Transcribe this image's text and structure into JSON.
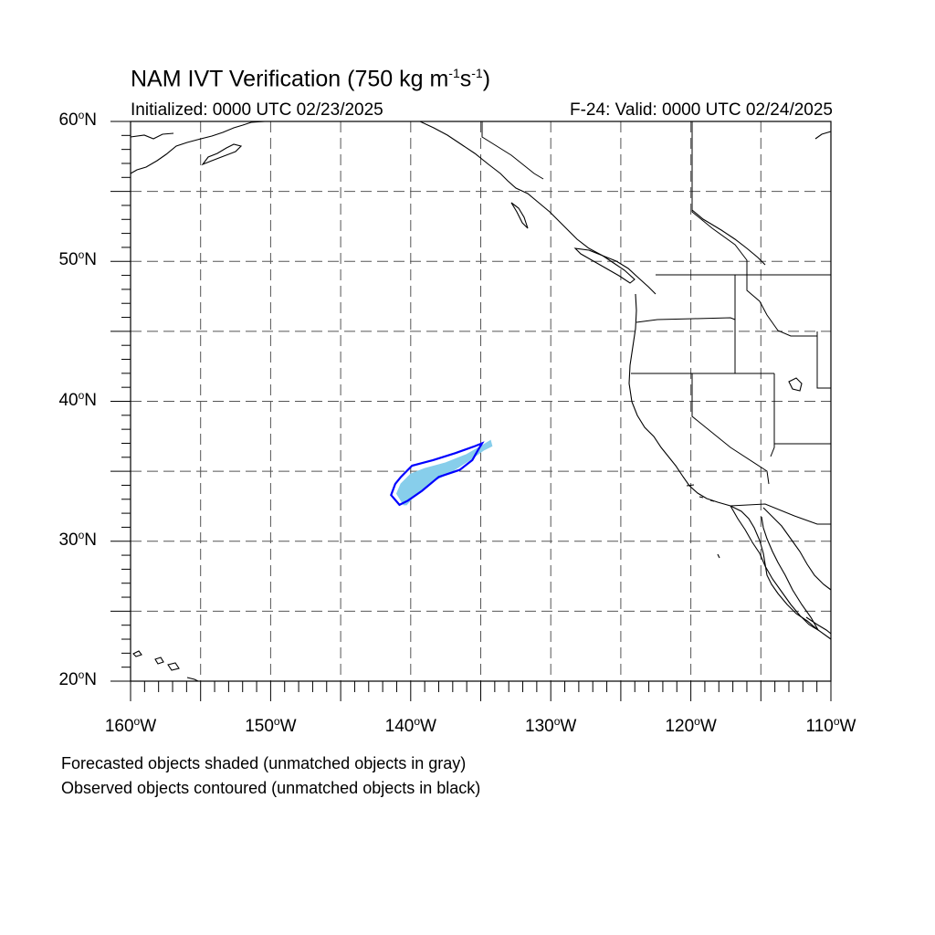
{
  "header": {
    "title_main": "NAM IVT Verification (750 kg m",
    "title_exp1": "-1",
    "title_mid": "s",
    "title_exp2": "-1",
    "title_end": ")",
    "initialized": "Initialized: 0000 UTC 02/23/2025",
    "valid": "F-24: Valid: 0000 UTC 02/24/2025"
  },
  "map": {
    "projection": "cylindrical-equidistant",
    "lon_range": [
      -160,
      -110
    ],
    "lat_range": [
      20,
      60
    ],
    "grid": "dashed every 5 degrees",
    "lat_labels": [
      {
        "value": 60,
        "deg": "60",
        "hem": "N"
      },
      {
        "value": 50,
        "deg": "50",
        "hem": "N"
      },
      {
        "value": 40,
        "deg": "40",
        "hem": "N"
      },
      {
        "value": 30,
        "deg": "30",
        "hem": "N"
      },
      {
        "value": 20,
        "deg": "20",
        "hem": "N"
      }
    ],
    "lon_labels": [
      {
        "value": -160,
        "deg": "160",
        "hem": "W"
      },
      {
        "value": -150,
        "deg": "150",
        "hem": "W"
      },
      {
        "value": -140,
        "deg": "140",
        "hem": "W"
      },
      {
        "value": -130,
        "deg": "130",
        "hem": "W"
      },
      {
        "value": -120,
        "deg": "120",
        "hem": "W"
      },
      {
        "value": -110,
        "deg": "110",
        "hem": "W"
      }
    ],
    "forecast_object_color": "#87ceeb",
    "observed_object_color": "#0000ff",
    "forecast_object": [
      [
        -140.5,
        32.6
      ],
      [
        -141.0,
        33.4
      ],
      [
        -140.7,
        34.1
      ],
      [
        -140.0,
        34.8
      ],
      [
        -139.0,
        35.2
      ],
      [
        -137.5,
        35.6
      ],
      [
        -136.0,
        36.2
      ],
      [
        -134.8,
        36.9
      ],
      [
        -134.3,
        37.2
      ],
      [
        -134.2,
        36.8
      ],
      [
        -134.8,
        36.5
      ],
      [
        -135.8,
        35.8
      ],
      [
        -137.2,
        34.9
      ],
      [
        -138.6,
        34.2
      ],
      [
        -139.7,
        33.3
      ],
      [
        -140.3,
        32.6
      ]
    ],
    "observed_object": [
      [
        -140.8,
        32.6
      ],
      [
        -141.4,
        33.3
      ],
      [
        -141.1,
        34.1
      ],
      [
        -140.7,
        34.6
      ],
      [
        -139.9,
        35.4
      ],
      [
        -138.4,
        35.8
      ],
      [
        -136.8,
        36.3
      ],
      [
        -135.4,
        36.8
      ],
      [
        -134.9,
        37.0
      ],
      [
        -135.2,
        36.5
      ],
      [
        -135.6,
        35.8
      ],
      [
        -136.5,
        35.1
      ],
      [
        -138.0,
        34.6
      ],
      [
        -139.2,
        33.6
      ],
      [
        -140.2,
        32.9
      ],
      [
        -140.8,
        32.6
      ]
    ]
  },
  "notes": {
    "forecast": "Forecasted objects shaded (unmatched objects in gray)",
    "observed": "Observed objects contoured (unmatched objects in black)"
  }
}
